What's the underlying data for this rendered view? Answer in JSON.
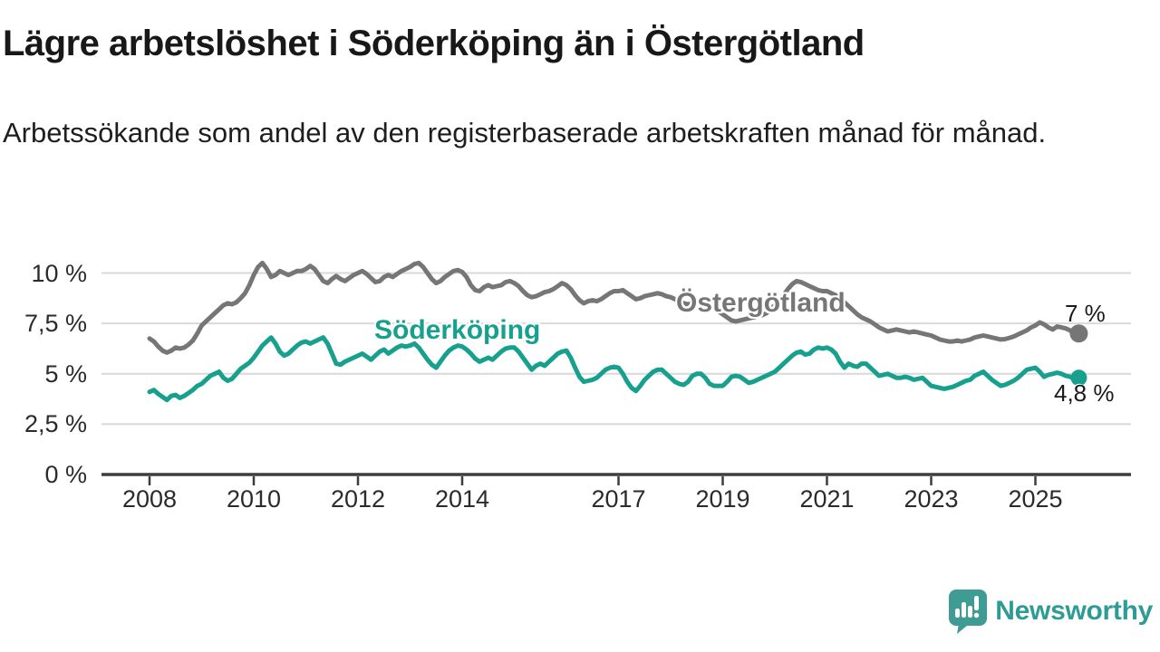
{
  "chart_data": {
    "type": "line",
    "title": "Lägre arbetslöshet i Söderköping än i Östergötland",
    "subtitle": "Arbetssökande som andel av den registerbaserade arbetskraften månad för månad.",
    "unit": "%",
    "grid": "horizontal",
    "legend_position": "inline-labels",
    "x_axis": {
      "ticks": [
        {
          "year": 2008,
          "label": "2008"
        },
        {
          "year": 2010,
          "label": "2010"
        },
        {
          "year": 2012,
          "label": "2012"
        },
        {
          "year": 2014,
          "label": "2014"
        },
        {
          "year": 2017,
          "label": "2017"
        },
        {
          "year": 2019,
          "label": "2019"
        },
        {
          "year": 2021,
          "label": "2021"
        },
        {
          "year": 2023,
          "label": "2023"
        },
        {
          "year": 2025,
          "label": "2025"
        }
      ]
    },
    "y_axis": {
      "range": [
        0,
        11
      ],
      "ticks": [
        {
          "value": 0,
          "label": "0 %"
        },
        {
          "value": 2.5,
          "label": "2,5 %"
        },
        {
          "value": 5,
          "label": "5 %"
        },
        {
          "value": 7.5,
          "label": "7,5 %"
        },
        {
          "value": 10,
          "label": "10 %"
        }
      ]
    },
    "series": [
      {
        "name": "Östergötland",
        "color": "#767676",
        "end_label": "7 %",
        "end_value": 7.0,
        "start_year": 2008,
        "step_months": 1,
        "values": [
          6.75,
          6.6,
          6.35,
          6.15,
          6.05,
          6.15,
          6.3,
          6.25,
          6.3,
          6.45,
          6.65,
          7.0,
          7.4,
          7.6,
          7.8,
          8.0,
          8.2,
          8.4,
          8.5,
          8.45,
          8.55,
          8.75,
          9.0,
          9.4,
          9.9,
          10.3,
          10.5,
          10.2,
          9.8,
          9.9,
          10.1,
          10.0,
          9.9,
          10.0,
          10.1,
          10.1,
          10.2,
          10.35,
          10.2,
          9.9,
          9.6,
          9.5,
          9.7,
          9.85,
          9.7,
          9.6,
          9.75,
          9.9,
          10.0,
          10.1,
          9.95,
          9.75,
          9.55,
          9.6,
          9.8,
          9.9,
          9.8,
          9.95,
          10.1,
          10.2,
          10.3,
          10.45,
          10.5,
          10.3,
          10.0,
          9.7,
          9.5,
          9.6,
          9.8,
          9.95,
          10.1,
          10.15,
          10.05,
          9.8,
          9.4,
          9.15,
          9.1,
          9.3,
          9.4,
          9.3,
          9.35,
          9.4,
          9.55,
          9.6,
          9.5,
          9.35,
          9.1,
          8.9,
          8.8,
          8.85,
          8.95,
          9.05,
          9.1,
          9.2,
          9.35,
          9.5,
          9.4,
          9.2,
          8.9,
          8.65,
          8.5,
          8.6,
          8.65,
          8.6,
          8.7,
          8.85,
          9.0,
          9.1,
          9.1,
          9.15,
          9.0,
          8.85,
          8.7,
          8.75,
          8.85,
          8.9,
          8.95,
          9.0,
          8.95,
          8.85,
          8.8,
          8.7,
          8.6,
          8.5,
          8.45,
          8.5,
          8.55,
          8.5,
          8.45,
          8.35,
          8.25,
          8.1,
          7.95,
          7.8,
          7.65,
          7.6,
          7.65,
          7.7,
          7.75,
          7.8,
          7.85,
          7.9,
          8.0,
          8.2,
          8.4,
          8.6,
          8.9,
          9.2,
          9.45,
          9.6,
          9.55,
          9.45,
          9.35,
          9.25,
          9.15,
          9.1,
          9.1,
          9.0,
          8.9,
          8.75,
          8.55,
          8.35,
          8.15,
          7.95,
          7.8,
          7.7,
          7.6,
          7.45,
          7.3,
          7.2,
          7.1,
          7.15,
          7.2,
          7.15,
          7.1,
          7.05,
          7.1,
          7.05,
          7.0,
          6.95,
          6.9,
          6.8,
          6.7,
          6.65,
          6.6,
          6.6,
          6.65,
          6.6,
          6.65,
          6.7,
          6.8,
          6.85,
          6.9,
          6.85,
          6.8,
          6.75,
          6.7,
          6.72,
          6.78,
          6.85,
          6.95,
          7.05,
          7.15,
          7.3,
          7.4,
          7.55,
          7.45,
          7.3,
          7.2,
          7.35,
          7.3,
          7.25,
          7.15,
          7.0,
          7.0
        ]
      },
      {
        "name": "Söderköping",
        "color": "#17a08e",
        "end_label": "4,8 %",
        "end_value": 4.8,
        "start_year": 2008,
        "step_months": 1,
        "values": [
          4.1,
          4.2,
          4.0,
          3.85,
          3.7,
          3.9,
          3.95,
          3.8,
          3.9,
          4.05,
          4.2,
          4.4,
          4.5,
          4.7,
          4.9,
          5.0,
          5.1,
          4.8,
          4.65,
          4.75,
          5.0,
          5.25,
          5.4,
          5.55,
          5.8,
          6.1,
          6.4,
          6.6,
          6.8,
          6.5,
          6.1,
          5.9,
          6.0,
          6.2,
          6.4,
          6.55,
          6.6,
          6.5,
          6.6,
          6.7,
          6.8,
          6.5,
          6.0,
          5.5,
          5.45,
          5.6,
          5.7,
          5.8,
          5.9,
          6.0,
          5.85,
          5.7,
          5.9,
          6.1,
          6.2,
          6.0,
          6.15,
          6.3,
          6.4,
          6.35,
          6.4,
          6.5,
          6.3,
          6.0,
          5.7,
          5.45,
          5.3,
          5.6,
          5.9,
          6.15,
          6.3,
          6.4,
          6.35,
          6.2,
          6.0,
          5.75,
          5.6,
          5.7,
          5.8,
          5.7,
          5.9,
          6.1,
          6.25,
          6.3,
          6.3,
          6.1,
          5.8,
          5.5,
          5.2,
          5.4,
          5.5,
          5.4,
          5.6,
          5.8,
          6.0,
          6.1,
          6.15,
          5.8,
          5.3,
          4.85,
          4.6,
          4.65,
          4.7,
          4.8,
          5.0,
          5.2,
          5.3,
          5.35,
          5.3,
          5.0,
          4.6,
          4.3,
          4.15,
          4.4,
          4.7,
          4.9,
          5.1,
          5.2,
          5.2,
          5.0,
          4.8,
          4.6,
          4.5,
          4.45,
          4.6,
          4.9,
          5.0,
          5.0,
          4.8,
          4.5,
          4.4,
          4.4,
          4.4,
          4.6,
          4.85,
          4.9,
          4.85,
          4.7,
          4.55,
          4.6,
          4.7,
          4.8,
          4.9,
          5.0,
          5.1,
          5.3,
          5.5,
          5.7,
          5.9,
          6.05,
          6.1,
          5.95,
          6.0,
          6.2,
          6.3,
          6.25,
          6.3,
          6.2,
          6.0,
          5.6,
          5.3,
          5.5,
          5.4,
          5.35,
          5.5,
          5.5,
          5.3,
          5.1,
          4.9,
          4.95,
          5.0,
          4.9,
          4.8,
          4.8,
          4.85,
          4.8,
          4.7,
          4.75,
          4.8,
          4.6,
          4.4,
          4.35,
          4.3,
          4.25,
          4.3,
          4.35,
          4.45,
          4.55,
          4.65,
          4.7,
          4.9,
          5.0,
          5.1,
          4.9,
          4.7,
          4.55,
          4.4,
          4.45,
          4.55,
          4.65,
          4.8,
          5.0,
          5.2,
          5.25,
          5.3,
          5.1,
          4.85,
          4.95,
          5.0,
          5.05,
          5.0,
          4.9,
          4.85,
          4.75,
          4.8
        ]
      }
    ]
  },
  "branding": {
    "logo_text": "Newsworthy",
    "icon_name": "speech-bubble-bar-chart-icon",
    "icon_color": "#3f9c94",
    "text_color": "#2e9c94"
  },
  "style_colors": {
    "axis": "#3d3d3d",
    "gridline": "#d9d9d9",
    "tick_label": "#2b2b2b"
  }
}
